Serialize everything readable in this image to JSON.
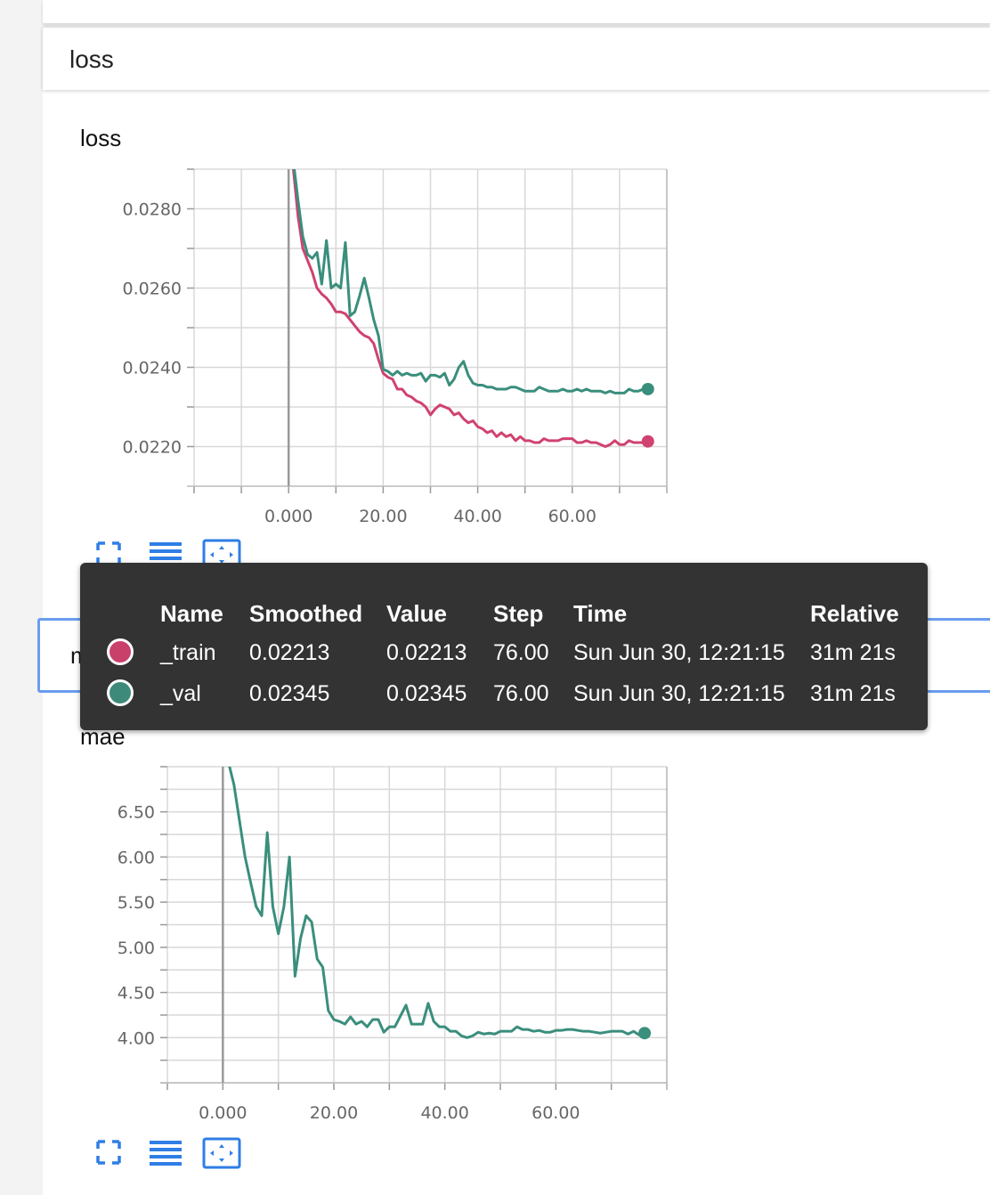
{
  "section": {
    "title": "loss"
  },
  "charts": [
    {
      "title": "loss",
      "chart_data": {
        "type": "line",
        "x_tick_labels": [
          "0.000",
          "20.00",
          "40.00",
          "60.00"
        ],
        "y_tick_labels": [
          "0.0280",
          "0.0260",
          "0.0240",
          "0.0220"
        ],
        "xlim": [
          -20,
          80
        ],
        "ylim": [
          0.021,
          0.029
        ],
        "grid": true,
        "series": [
          {
            "name": "_train",
            "color": "#d0426f",
            "x": [
              1,
              2,
              3,
              4,
              5,
              6,
              7,
              8,
              9,
              10,
              11,
              12,
              13,
              14,
              15,
              16,
              17,
              18,
              19,
              20,
              21,
              22,
              23,
              24,
              25,
              26,
              27,
              28,
              29,
              30,
              31,
              32,
              33,
              34,
              35,
              36,
              37,
              38,
              39,
              40,
              41,
              42,
              43,
              44,
              45,
              46,
              47,
              48,
              49,
              50,
              51,
              52,
              53,
              54,
              55,
              56,
              57,
              58,
              59,
              60,
              61,
              62,
              63,
              64,
              65,
              66,
              67,
              68,
              69,
              70,
              71,
              72,
              73,
              74,
              75,
              76
            ],
            "y": [
              0.029,
              0.0278,
              0.027,
              0.0267,
              0.0264,
              0.026,
              0.02585,
              0.02575,
              0.0256,
              0.0254,
              0.0254,
              0.02535,
              0.0252,
              0.02505,
              0.0249,
              0.0248,
              0.02475,
              0.0246,
              0.0242,
              0.02385,
              0.02375,
              0.0237,
              0.02345,
              0.02345,
              0.0233,
              0.02325,
              0.02315,
              0.0231,
              0.023,
              0.0228,
              0.02295,
              0.02305,
              0.023,
              0.02295,
              0.0228,
              0.02285,
              0.0227,
              0.0226,
              0.02265,
              0.0225,
              0.02245,
              0.02235,
              0.0224,
              0.02225,
              0.02235,
              0.02225,
              0.0223,
              0.02215,
              0.02225,
              0.02215,
              0.02215,
              0.0221,
              0.0221,
              0.0222,
              0.02215,
              0.02215,
              0.02215,
              0.0222,
              0.0222,
              0.0222,
              0.0221,
              0.0221,
              0.02215,
              0.0221,
              0.0221,
              0.02205,
              0.022,
              0.02205,
              0.02215,
              0.02205,
              0.02205,
              0.02215,
              0.0221,
              0.0221,
              0.0221,
              0.02213
            ]
          },
          {
            "name": "_val",
            "color": "#3a8e7c",
            "x": [
              1,
              2,
              3,
              4,
              5,
              6,
              7,
              8,
              9,
              10,
              11,
              12,
              13,
              14,
              15,
              16,
              17,
              18,
              19,
              20,
              21,
              22,
              23,
              24,
              25,
              26,
              27,
              28,
              29,
              30,
              31,
              32,
              33,
              34,
              35,
              36,
              37,
              38,
              39,
              40,
              41,
              42,
              43,
              44,
              45,
              46,
              47,
              48,
              49,
              50,
              51,
              52,
              53,
              54,
              55,
              56,
              57,
              58,
              59,
              60,
              61,
              62,
              63,
              64,
              65,
              66,
              67,
              68,
              69,
              70,
              71,
              72,
              73,
              74,
              75,
              76
            ],
            "y": [
              0.0292,
              0.0282,
              0.0273,
              0.02685,
              0.02675,
              0.0269,
              0.0261,
              0.0272,
              0.026,
              0.0261,
              0.026,
              0.02715,
              0.0253,
              0.0254,
              0.0258,
              0.02625,
              0.02575,
              0.0252,
              0.0248,
              0.02395,
              0.0239,
              0.0238,
              0.0239,
              0.0238,
              0.02385,
              0.0238,
              0.0238,
              0.02385,
              0.02365,
              0.0238,
              0.0238,
              0.02375,
              0.02385,
              0.02355,
              0.0237,
              0.024,
              0.02415,
              0.0238,
              0.0236,
              0.02355,
              0.02355,
              0.0235,
              0.0235,
              0.02345,
              0.02345,
              0.02345,
              0.0235,
              0.0235,
              0.02345,
              0.0234,
              0.0234,
              0.0234,
              0.0235,
              0.02345,
              0.0234,
              0.0234,
              0.0234,
              0.02345,
              0.0234,
              0.0234,
              0.02345,
              0.0234,
              0.02345,
              0.0234,
              0.0234,
              0.0234,
              0.02335,
              0.0234,
              0.02335,
              0.02335,
              0.02335,
              0.02345,
              0.0234,
              0.0234,
              0.02345,
              0.02345
            ]
          }
        ]
      }
    },
    {
      "title": "mae",
      "chart_data": {
        "type": "line",
        "x_tick_labels": [
          "0.000",
          "20.00",
          "40.00",
          "60.00"
        ],
        "y_tick_labels": [
          "6.50",
          "6.00",
          "5.50",
          "5.00",
          "4.50",
          "4.00"
        ],
        "xlim": [
          -10,
          80
        ],
        "ylim": [
          3.5,
          7.0
        ],
        "grid": true,
        "series": [
          {
            "name": "_val",
            "color": "#3a8e7c",
            "x": [
              1,
              2,
              3,
              4,
              5,
              6,
              7,
              8,
              9,
              10,
              11,
              12,
              13,
              14,
              15,
              16,
              17,
              18,
              19,
              20,
              21,
              22,
              23,
              24,
              25,
              26,
              27,
              28,
              29,
              30,
              31,
              32,
              33,
              34,
              35,
              36,
              37,
              38,
              39,
              40,
              41,
              42,
              43,
              44,
              45,
              46,
              47,
              48,
              49,
              50,
              51,
              52,
              53,
              54,
              55,
              56,
              57,
              58,
              59,
              60,
              61,
              62,
              63,
              64,
              65,
              66,
              67,
              68,
              69,
              70,
              71,
              72,
              73,
              74,
              75,
              76
            ],
            "y": [
              7.05,
              6.8,
              6.4,
              6.0,
              5.72,
              5.45,
              5.35,
              6.27,
              5.45,
              5.15,
              5.45,
              6.0,
              4.68,
              5.1,
              5.35,
              5.28,
              4.87,
              4.78,
              4.3,
              4.2,
              4.18,
              4.15,
              4.23,
              4.15,
              4.18,
              4.12,
              4.2,
              4.2,
              4.06,
              4.12,
              4.12,
              4.24,
              4.36,
              4.15,
              4.15,
              4.15,
              4.38,
              4.18,
              4.12,
              4.12,
              4.07,
              4.07,
              4.02,
              4.0,
              4.02,
              4.06,
              4.04,
              4.05,
              4.04,
              4.07,
              4.07,
              4.07,
              4.12,
              4.09,
              4.09,
              4.07,
              4.08,
              4.06,
              4.06,
              4.08,
              4.08,
              4.09,
              4.09,
              4.08,
              4.07,
              4.07,
              4.06,
              4.05,
              4.06,
              4.07,
              4.07,
              4.07,
              4.04,
              4.07,
              4.03,
              4.05
            ]
          }
        ]
      }
    }
  ],
  "obscured_card": {
    "label": "mae"
  },
  "tooltip": {
    "headers": [
      "Name",
      "Smoothed",
      "Value",
      "Step",
      "Time",
      "Relative"
    ],
    "rows": [
      {
        "color": "#c9406a",
        "name": "_train",
        "smoothed": "0.02213",
        "value": "0.02213",
        "step": "76.00",
        "time": "Sun Jun 30, 12:21:15",
        "relative": "31m 21s"
      },
      {
        "color": "#3e8a7a",
        "name": "_val",
        "smoothed": "0.02345",
        "value": "0.02345",
        "step": "76.00",
        "time": "Sun Jun 30, 12:21:15",
        "relative": "31m 21s"
      }
    ]
  },
  "toolbar_icons": [
    "fullscreen-icon",
    "list-icon",
    "fit-domain-icon"
  ]
}
